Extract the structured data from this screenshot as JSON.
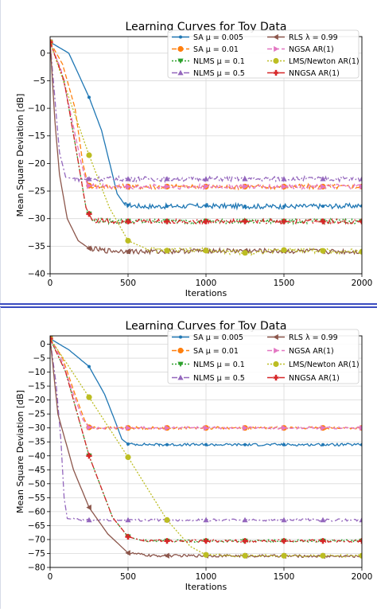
{
  "chart_data": [
    {
      "type": "line",
      "title": "Learning Curves for Toy Data",
      "xlabel": "Iterations",
      "ylabel": "Mean Square Deviation [dB]",
      "xlim": [
        0,
        2000
      ],
      "ylim": [
        -40,
        3
      ],
      "xticks": [
        0,
        500,
        1000,
        1500,
        2000
      ],
      "yticks": [
        0,
        -5,
        -10,
        -15,
        -20,
        -25,
        -30,
        -35,
        -40
      ],
      "grid": true,
      "legend_position": "top-right, two columns",
      "series": [
        {
          "name": "SA $\\mu = 0.005$",
          "label": "SA μ = 0.005",
          "color": "#1f77b4",
          "marker": "point",
          "dash": "",
          "points": [
            [
              0,
              2
            ],
            [
              120,
              0
            ],
            [
              250,
              -8
            ],
            [
              330,
              -14
            ],
            [
              400,
              -22
            ],
            [
              430,
              -25.5
            ],
            [
              480,
              -27.5
            ],
            [
              600,
              -27.8
            ],
            [
              1000,
              -27.7
            ],
            [
              1500,
              -27.8
            ],
            [
              2000,
              -27.7
            ]
          ]
        },
        {
          "name": "SA $\\mu = 0.01$",
          "label": "SA μ = 0.01",
          "color": "#ff7f0e",
          "marker": "circle",
          "dash": "6,3",
          "points": [
            [
              0,
              2
            ],
            [
              80,
              -2
            ],
            [
              160,
              -10
            ],
            [
              210,
              -20
            ],
            [
              245,
              -24
            ],
            [
              300,
              -24.2
            ],
            [
              1000,
              -24.2
            ],
            [
              2000,
              -24.2
            ]
          ]
        },
        {
          "name": "NLMS $\\mu = 0.1$",
          "label": "NLMS μ = 0.1",
          "color": "#2ca02c",
          "marker": "triangle-down",
          "dash": "2,2",
          "points": [
            [
              0,
              2
            ],
            [
              90,
              -5
            ],
            [
              170,
              -18
            ],
            [
              230,
              -28
            ],
            [
              270,
              -30.3
            ],
            [
              400,
              -30.5
            ],
            [
              1000,
              -30.5
            ],
            [
              2000,
              -30.5
            ]
          ]
        },
        {
          "name": "NLMS $\\mu = 0.5$",
          "label": "NLMS μ = 0.5",
          "color": "#9467bd",
          "marker": "triangle-up",
          "dash": "7,3,2,3",
          "points": [
            [
              0,
              2
            ],
            [
              30,
              -8
            ],
            [
              60,
              -18
            ],
            [
              100,
              -22.5
            ],
            [
              160,
              -22.8
            ],
            [
              1000,
              -22.8
            ],
            [
              2000,
              -22.8
            ]
          ]
        },
        {
          "name": "RLS $\\lambda = 0.99$",
          "label": "RLS λ = 0.99",
          "color": "#8c564b",
          "marker": "triangle-left",
          "dash": "",
          "points": [
            [
              0,
              2
            ],
            [
              30,
              -12
            ],
            [
              60,
              -22
            ],
            [
              110,
              -30
            ],
            [
              180,
              -34
            ],
            [
              250,
              -35.4
            ],
            [
              350,
              -35.8
            ],
            [
              600,
              -36
            ],
            [
              1000,
              -35.8
            ],
            [
              2000,
              -36
            ]
          ]
        },
        {
          "name": "NGSA AR(1)",
          "label": "NGSA AR(1)",
          "color": "#e377c2",
          "marker": "triangle-right",
          "dash": "6,3",
          "points": [
            [
              0,
              2
            ],
            [
              70,
              -3
            ],
            [
              140,
              -12
            ],
            [
              200,
              -20
            ],
            [
              240,
              -24
            ],
            [
              300,
              -24.2
            ],
            [
              1000,
              -24.2
            ],
            [
              2000,
              -24.2
            ]
          ]
        },
        {
          "name": "LMS/Newton AR(1)",
          "label": "LMS/Newton AR(1)",
          "color": "#bcbd22",
          "marker": "circle",
          "dash": "2,2",
          "points": [
            [
              0,
              2
            ],
            [
              120,
              -8
            ],
            [
              250,
              -18.5
            ],
            [
              380,
              -28
            ],
            [
              500,
              -34
            ],
            [
              620,
              -35.5
            ],
            [
              750,
              -35.8
            ],
            [
              1000,
              -35.8
            ],
            [
              1250,
              -36.2
            ],
            [
              1500,
              -35.7
            ],
            [
              2000,
              -36
            ]
          ]
        },
        {
          "name": "NNGSA AR(1)",
          "label": "NNGSA AR(1)",
          "color": "#d62728",
          "marker": "plus",
          "dash": "7,3,2,3",
          "points": [
            [
              0,
              2
            ],
            [
              90,
              -5
            ],
            [
              170,
              -18
            ],
            [
              230,
              -28
            ],
            [
              270,
              -30.3
            ],
            [
              400,
              -30.5
            ],
            [
              1000,
              -30.5
            ],
            [
              2000,
              -30.5
            ]
          ]
        }
      ]
    },
    {
      "type": "line",
      "title": "Learning Curves for Toy Data",
      "xlabel": "Iterations",
      "ylabel": "Mean Square Deviation [dB]",
      "xlim": [
        0,
        2000
      ],
      "ylim": [
        -80,
        3
      ],
      "xticks": [
        0,
        500,
        1000,
        1500,
        2000
      ],
      "yticks": [
        0,
        -5,
        -10,
        -15,
        -20,
        -25,
        -30,
        -35,
        -40,
        -45,
        -50,
        -55,
        -60,
        -65,
        -70,
        -75,
        -80
      ],
      "grid": true,
      "legend_position": "top-right, two columns",
      "series": [
        {
          "name": "SA $\\mu = 0.005$",
          "label": "SA μ = 0.005",
          "color": "#1f77b4",
          "marker": "point",
          "dash": "",
          "points": [
            [
              0,
              2
            ],
            [
              120,
              -2
            ],
            [
              250,
              -8
            ],
            [
              350,
              -18
            ],
            [
              420,
              -28
            ],
            [
              460,
              -34
            ],
            [
              500,
              -35.8
            ],
            [
              700,
              -36
            ],
            [
              1000,
              -36
            ],
            [
              1500,
              -36
            ],
            [
              2000,
              -36
            ]
          ]
        },
        {
          "name": "SA $\\mu = 0.01$",
          "label": "SA μ = 0.01",
          "color": "#ff7f0e",
          "marker": "circle",
          "dash": "6,3",
          "points": [
            [
              0,
              2
            ],
            [
              80,
              -5
            ],
            [
              160,
              -18
            ],
            [
              220,
              -27
            ],
            [
              250,
              -29.8
            ],
            [
              300,
              -30
            ],
            [
              1000,
              -30
            ],
            [
              2000,
              -30
            ]
          ]
        },
        {
          "name": "NLMS $\\mu = 0.1$",
          "label": "NLMS μ = 0.1",
          "color": "#2ca02c",
          "marker": "triangle-down",
          "dash": "2,2",
          "points": [
            [
              0,
              2
            ],
            [
              100,
              -10
            ],
            [
              250,
              -40
            ],
            [
              400,
              -62
            ],
            [
              500,
              -69
            ],
            [
              600,
              -70.5
            ],
            [
              1000,
              -70.5
            ],
            [
              2000,
              -70.5
            ]
          ]
        },
        {
          "name": "NLMS $\\mu = 0.5$",
          "label": "NLMS μ = 0.5",
          "color": "#9467bd",
          "marker": "triangle-up",
          "dash": "7,3,2,3",
          "points": [
            [
              0,
              2
            ],
            [
              40,
              -15
            ],
            [
              70,
              -35
            ],
            [
              90,
              -55
            ],
            [
              110,
              -62.5
            ],
            [
              200,
              -63
            ],
            [
              1000,
              -63
            ],
            [
              2000,
              -63
            ]
          ]
        },
        {
          "name": "RLS $\\lambda = 0.99$",
          "label": "RLS λ = 0.99",
          "color": "#8c564b",
          "marker": "triangle-left",
          "dash": "",
          "points": [
            [
              0,
              2
            ],
            [
              50,
              -25
            ],
            [
              150,
              -45
            ],
            [
              250,
              -58.5
            ],
            [
              370,
              -68
            ],
            [
              500,
              -74.8
            ],
            [
              650,
              -75.8
            ],
            [
              1000,
              -75.8
            ],
            [
              2000,
              -76
            ]
          ]
        },
        {
          "name": "NGSA AR(1)",
          "label": "NGSA AR(1)",
          "color": "#e377c2",
          "marker": "triangle-right",
          "dash": "6,3",
          "points": [
            [
              0,
              2
            ],
            [
              70,
              -5
            ],
            [
              150,
              -18
            ],
            [
              210,
              -27
            ],
            [
              250,
              -29.8
            ],
            [
              300,
              -30
            ],
            [
              1000,
              -30
            ],
            [
              2000,
              -30
            ]
          ]
        },
        {
          "name": "LMS/Newton AR(1)",
          "label": "LMS/Newton AR(1)",
          "color": "#bcbd22",
          "marker": "circle",
          "dash": "2,2",
          "points": [
            [
              0,
              2
            ],
            [
              120,
              -8
            ],
            [
              250,
              -19
            ],
            [
              500,
              -40.5
            ],
            [
              750,
              -63
            ],
            [
              900,
              -72.5
            ],
            [
              1000,
              -75.5
            ],
            [
              1250,
              -75.8
            ],
            [
              1500,
              -75.8
            ],
            [
              2000,
              -75.8
            ]
          ]
        },
        {
          "name": "NNGSA AR(1)",
          "label": "NNGSA AR(1)",
          "color": "#d62728",
          "marker": "plus",
          "dash": "7,3,2,3",
          "points": [
            [
              0,
              2
            ],
            [
              100,
              -10
            ],
            [
              250,
              -40
            ],
            [
              400,
              -62
            ],
            [
              500,
              -69
            ],
            [
              600,
              -70.5
            ],
            [
              1000,
              -70.5
            ],
            [
              2000,
              -70.5
            ]
          ]
        }
      ]
    }
  ]
}
